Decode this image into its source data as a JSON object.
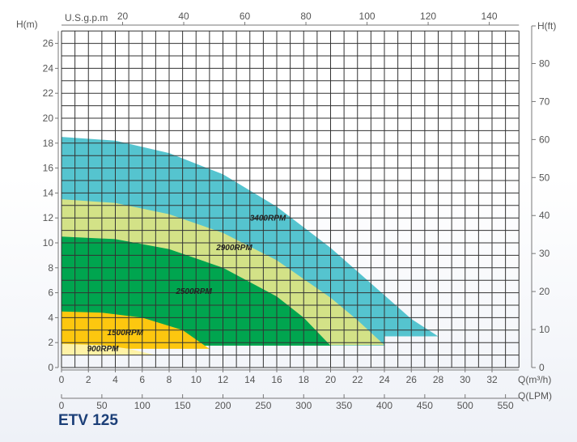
{
  "model": "ETV 125",
  "chart_data": {
    "type": "area",
    "title": "ETV 125",
    "xlabel": "Q(m³/h)",
    "ylabel": "H(m)",
    "y2label": "H(ft)",
    "x_top_label": "U.S.g.p.m",
    "x_bottom2_label": "Q(LPM)",
    "xlim": [
      0,
      34
    ],
    "ylim": [
      0,
      27
    ],
    "grid": true,
    "x_ticks": [
      0,
      2,
      4,
      6,
      8,
      10,
      12,
      14,
      16,
      18,
      20,
      22,
      24,
      26,
      28,
      30,
      32
    ],
    "y_ticks": [
      0,
      2,
      4,
      6,
      8,
      10,
      12,
      14,
      16,
      18,
      20,
      22,
      24,
      26
    ],
    "ft_ticks": [
      0,
      10,
      20,
      30,
      40,
      50,
      60,
      70,
      80
    ],
    "gpm_ticks": [
      20,
      40,
      60,
      80,
      100,
      120,
      140
    ],
    "lpm_ticks": [
      0,
      50,
      100,
      150,
      200,
      250,
      300,
      350,
      400,
      450,
      500,
      550
    ],
    "series": [
      {
        "name": "3400RPM",
        "color": "#55c4cf",
        "label_at": [
          14,
          11.8
        ],
        "curve": [
          [
            0,
            18.5
          ],
          [
            4,
            18.2
          ],
          [
            8,
            17.2
          ],
          [
            12,
            15.5
          ],
          [
            16,
            12.9
          ],
          [
            20,
            9.6
          ],
          [
            24,
            5.8
          ],
          [
            26,
            3.9
          ],
          [
            28,
            2.5
          ]
        ],
        "bottom": [
          [
            24,
            2.5
          ],
          [
            24,
            1.75
          ],
          [
            0,
            1.75
          ]
        ]
      },
      {
        "name": "2900RPM",
        "color": "#d3e287",
        "label_at": [
          11.5,
          9.4
        ],
        "curve": [
          [
            0,
            13.5
          ],
          [
            4,
            13.2
          ],
          [
            8,
            12.3
          ],
          [
            12,
            10.8
          ],
          [
            16,
            8.6
          ],
          [
            20,
            5.6
          ],
          [
            22,
            3.8
          ],
          [
            24,
            1.8
          ]
        ],
        "bottom": [
          [
            0,
            1.75
          ]
        ]
      },
      {
        "name": "2500RPM",
        "color": "#00a54f",
        "label_at": [
          8.5,
          5.9
        ],
        "curve": [
          [
            0,
            10.5
          ],
          [
            4,
            10.3
          ],
          [
            8,
            9.5
          ],
          [
            12,
            8.0
          ],
          [
            16,
            5.7
          ],
          [
            18,
            4.0
          ],
          [
            20,
            1.75
          ]
        ],
        "bottom": [
          [
            0,
            1.75
          ]
        ]
      },
      {
        "name": "1500RPM",
        "color": "#fdc70f",
        "label_at": [
          3.4,
          2.6
        ],
        "curve": [
          [
            0,
            4.5
          ],
          [
            3,
            4.4
          ],
          [
            6,
            4.0
          ],
          [
            9,
            3.0
          ],
          [
            11,
            1.5
          ]
        ],
        "bottom": [
          [
            5,
            1.5
          ],
          [
            0,
            1.9
          ]
        ]
      },
      {
        "name": "900RPM",
        "color": "#fff2a6",
        "label_at": [
          1.9,
          1.3
        ],
        "curve": [
          [
            0,
            1.9
          ],
          [
            3,
            1.8
          ],
          [
            5,
            1.5
          ],
          [
            7,
            1.0
          ]
        ],
        "bottom": [
          [
            0,
            1.0
          ]
        ]
      }
    ]
  }
}
